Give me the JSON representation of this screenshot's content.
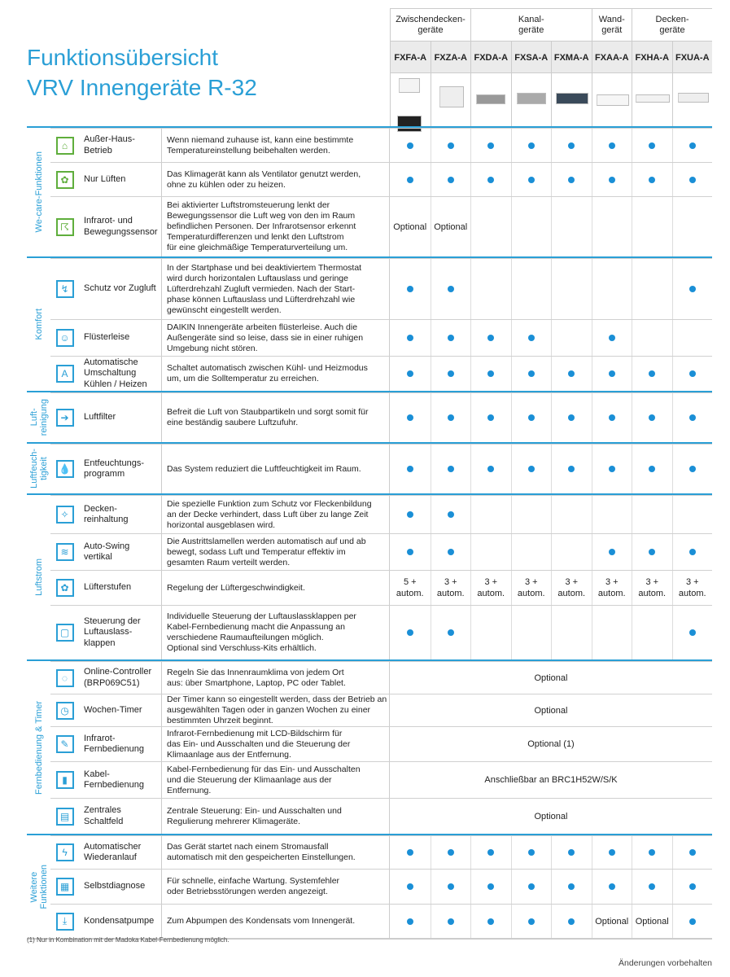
{
  "title": {
    "line1": "Funktionsübersicht",
    "line2": "VRV Innengeräte R-32"
  },
  "groups": [
    {
      "label": "Zwischendecken-\ngeräte",
      "cols": 2
    },
    {
      "label": "Kanal-\ngeräte",
      "cols": 3
    },
    {
      "label": "Wand-\ngerät",
      "cols": 1
    },
    {
      "label": "Decken-\ngeräte",
      "cols": 2
    }
  ],
  "models": [
    "FXFA-A",
    "FXZA-A",
    "FXDA-A",
    "FXSA-A",
    "FXMA-A",
    "FXAA-A",
    "FXHA-A",
    "FXUA-A"
  ],
  "colors": {
    "accent": "#2a9fd6",
    "dot": "#1a8fd6",
    "wecare_icon": "#5fae3c"
  },
  "sections": [
    {
      "label": "We-care-Funktionen",
      "rows": [
        {
          "icon": "house-key-icon",
          "name": "Außer-Haus-Betrieb",
          "desc": "Wenn niemand zuhause ist, kann eine bestimmte\nTemperatureinstellung beibehalten werden.",
          "values": [
            "dot",
            "dot",
            "dot",
            "dot",
            "dot",
            "dot",
            "dot",
            "dot"
          ]
        },
        {
          "icon": "fan-icon",
          "name": "Nur Lüften",
          "desc": "Das Klimagerät kann als Ventilator genutzt werden,\nohne zu kühlen oder zu heizen.",
          "values": [
            "dot",
            "dot",
            "dot",
            "dot",
            "dot",
            "dot",
            "dot",
            "dot"
          ]
        },
        {
          "icon": "motion-sensor-icon",
          "name": "Infrarot- und\nBewegungssensor",
          "desc": "Bei aktivierter Luftstromsteuerung lenkt der\nBewegungssensor die Luft weg von den im Raum\nbefindlichen Personen. Der Infrarotsensor erkennt\nTemperaturdifferenzen und lenkt den Luftstrom\nfür eine gleichmäßige Temperaturverteilung um.",
          "values": [
            "Optional",
            "Optional",
            "",
            "",
            "",
            "",
            "",
            ""
          ]
        }
      ]
    },
    {
      "label": "Komfort",
      "rows": [
        {
          "icon": "draft-prevention-icon",
          "name": "Schutz vor Zugluft",
          "desc": "In der Startphase und bei deaktiviertem Thermostat\nwird durch horizontalen Luftauslass und geringe\nLüfterdrehzahl Zugluft vermieden. Nach der Start-\nphase können Luftauslass und Lüfterdrehzahl wie\ngewünscht eingestellt werden.",
          "values": [
            "dot",
            "dot",
            "",
            "",
            "",
            "",
            "",
            "dot"
          ]
        },
        {
          "icon": "quiet-face-icon",
          "name": "Flüsterleise",
          "desc": "DAIKIN Innengeräte arbeiten flüsterleise. Auch die\nAußengeräte sind so leise, dass sie in einer ruhigen\nUmgebung nicht stören.",
          "values": [
            "dot",
            "dot",
            "dot",
            "dot",
            "",
            "dot",
            "",
            ""
          ]
        },
        {
          "icon": "auto-mode-icon",
          "name": "Automatische\nUmschaltung\nKühlen / Heizen",
          "desc": "Schaltet automatisch zwischen Kühl- und Heizmodus\num, um die Solltemperatur zu erreichen.",
          "values": [
            "dot",
            "dot",
            "dot",
            "dot",
            "dot",
            "dot",
            "dot",
            "dot"
          ]
        }
      ]
    },
    {
      "label": "Luft-\nreinigung",
      "rows": [
        {
          "icon": "air-filter-icon",
          "name": "Luftfilter",
          "desc": "Befreit die Luft von Staubpartikeln und sorgt somit für\neine beständig saubere Luftzufuhr.",
          "values": [
            "dot",
            "dot",
            "dot",
            "dot",
            "dot",
            "dot",
            "dot",
            "dot"
          ]
        }
      ]
    },
    {
      "label": "Luftfeuch-\ntigkeit",
      "rows": [
        {
          "icon": "dry-drops-icon",
          "name": "Entfeuchtungs-\nprogramm",
          "desc": "Das System reduziert die Luftfeuchtigkeit im Raum.",
          "values": [
            "dot",
            "dot",
            "dot",
            "dot",
            "dot",
            "dot",
            "dot",
            "dot"
          ]
        }
      ]
    },
    {
      "label": "Luftstrom",
      "rows": [
        {
          "icon": "ceiling-clean-icon",
          "name": "Decken-\nreinhaltung",
          "desc": "Die spezielle Funktion zum Schutz vor Fleckenbildung\nan der Decke verhindert, dass Luft über zu lange Zeit\nhorizontal ausgeblasen wird.",
          "values": [
            "dot",
            "dot",
            "",
            "",
            "",
            "",
            "",
            ""
          ]
        },
        {
          "icon": "swing-icon",
          "name": "Auto-Swing\nvertikal",
          "desc": "Die Austrittslamellen werden automatisch auf und ab\nbewegt, sodass Luft und Temperatur effektiv im\ngesamten Raum verteilt werden.",
          "values": [
            "dot",
            "dot",
            "",
            "",
            "",
            "dot",
            "dot",
            "dot"
          ]
        },
        {
          "icon": "fan-speed-icon",
          "name": "Lüfterstufen",
          "desc": "Regelung der Lüftergeschwindigkeit.",
          "values": [
            "5 +\nautom.",
            "3 +\nautom.",
            "3 +\nautom.",
            "3 +\nautom.",
            "3 +\nautom.",
            "3 +\nautom.",
            "3 +\nautom.",
            "3 +\nautom."
          ]
        },
        {
          "icon": "louver-control-icon",
          "name": "Steuerung der\nLuftauslass-\nklappen",
          "desc": "Individuelle Steuerung der Luftauslassklappen per\nKabel-Fernbedienung macht die Anpassung an\nverschiedene Raumaufteilungen möglich.\nOptional sind Verschluss-Kits erhältlich.",
          "values": [
            "dot",
            "dot",
            "",
            "",
            "",
            "",
            "",
            "dot"
          ]
        }
      ]
    },
    {
      "label": "Fernbedienung & Timer",
      "rows": [
        {
          "icon": "online-controller-icon",
          "name": "Online-Controller\n(BRP069C51)",
          "desc": "Regeln Sie das Innenraumklima von jedem Ort\naus: über Smartphone, Laptop, PC oder Tablet.",
          "span": "Optional"
        },
        {
          "icon": "clock-24-7-icon",
          "name": "Wochen-Timer",
          "desc": "Der Timer kann so eingestellt werden, dass der Betrieb an\nausgewählten Tagen oder in ganzen Wochen zu einer\nbestimmten Uhrzeit beginnt.",
          "span": "Optional"
        },
        {
          "icon": "ir-remote-icon",
          "name": "Infrarot-\nFernbedienung",
          "desc": "Infrarot-Fernbedienung mit LCD-Bildschirm für\ndas Ein- und Ausschalten und die Steuerung der\nKlimaanlage aus der Entfernung.",
          "span": "Optional (1)"
        },
        {
          "icon": "wired-remote-icon",
          "name": "Kabel-\nFernbedienung",
          "desc": "Kabel-Fernbedienung für das Ein- und Ausschalten\nund die Steuerung der Klimaanlage aus der\nEntfernung.",
          "span": "Anschließbar an BRC1H52W/S/K"
        },
        {
          "icon": "central-control-icon",
          "name": "Zentrales\nSchaltfeld",
          "desc": "Zentrale Steuerung: Ein- und Ausschalten und\nRegulierung mehrerer Klimageräte.",
          "span": "Optional"
        }
      ]
    },
    {
      "label": "Weitere\nFunktionen",
      "rows": [
        {
          "icon": "auto-restart-icon",
          "name": "Automatischer\nWiederanlauf",
          "desc": "Das Gerät startet nach einem Stromausfall\nautomatisch mit den gespeicherten Einstellungen.",
          "values": [
            "dot",
            "dot",
            "dot",
            "dot",
            "dot",
            "dot",
            "dot",
            "dot"
          ]
        },
        {
          "icon": "self-diagnosis-icon",
          "name": "Selbstdiagnose",
          "desc": "Für schnelle, einfache Wartung. Systemfehler\noder Betriebsstörungen werden angezeigt.",
          "values": [
            "dot",
            "dot",
            "dot",
            "dot",
            "dot",
            "dot",
            "dot",
            "dot"
          ]
        },
        {
          "icon": "drain-pump-icon",
          "name": "Kondensatpumpe",
          "desc": "Zum Abpumpen des Kondensats vom Innengerät.",
          "values": [
            "dot",
            "dot",
            "dot",
            "dot",
            "dot",
            "Optional",
            "Optional",
            "dot"
          ]
        }
      ]
    }
  ],
  "footnote": "(1) Nur in Kombination mit der Madoka Kabel-Fernbedienung möglich.",
  "disclaimer": "Änderungen vorbehalten"
}
